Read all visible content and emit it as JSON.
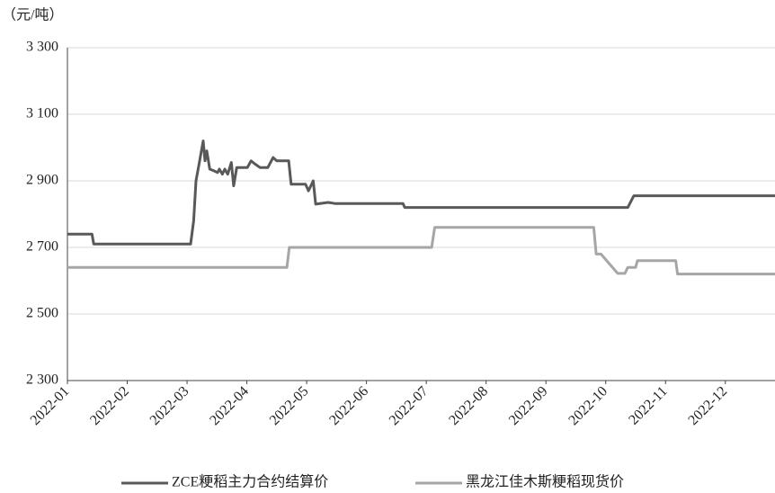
{
  "chart_data": {
    "type": "line",
    "unit_label": "（元/吨）",
    "xlim": [
      0,
      11.83
    ],
    "xticks": [
      {
        "value": 0,
        "label": "2022-01"
      },
      {
        "value": 1,
        "label": "2022-02"
      },
      {
        "value": 2,
        "label": "2022-03"
      },
      {
        "value": 3,
        "label": "2022-04"
      },
      {
        "value": 4,
        "label": "2022-05"
      },
      {
        "value": 5,
        "label": "2022-06"
      },
      {
        "value": 6,
        "label": "2022-07"
      },
      {
        "value": 7,
        "label": "2022-08"
      },
      {
        "value": 8,
        "label": "2022-09"
      },
      {
        "value": 9,
        "label": "2022-10"
      },
      {
        "value": 10,
        "label": "2022-11"
      },
      {
        "value": 11,
        "label": "2022-12"
      }
    ],
    "ylim": [
      2300,
      3300
    ],
    "yticks": [
      {
        "value": 2300,
        "label": "2 300"
      },
      {
        "value": 2500,
        "label": "2 500"
      },
      {
        "value": 2700,
        "label": "2 700"
      },
      {
        "value": 2900,
        "label": "2 900"
      },
      {
        "value": 3100,
        "label": "3 100"
      },
      {
        "value": 3300,
        "label": "3 300"
      }
    ],
    "grid": true,
    "legend": "bottom",
    "series": [
      {
        "name": "ZCE粳稻主力合约结算价",
        "color": "#595959",
        "x": [
          0,
          0.41,
          0.44,
          2.06,
          2.11,
          2.15,
          2.2,
          2.27,
          2.3,
          2.33,
          2.38,
          2.45,
          2.51,
          2.54,
          2.59,
          2.63,
          2.68,
          2.74,
          2.78,
          2.83,
          3.01,
          3.07,
          3.14,
          3.22,
          3.35,
          3.44,
          3.5,
          3.7,
          3.74,
          3.98,
          4.03,
          4.11,
          4.15,
          4.36,
          4.47,
          5.61,
          5.64,
          9.37,
          9.47,
          11.83
        ],
        "values": [
          2740,
          2740,
          2710,
          2710,
          2780,
          2900,
          2950,
          3020,
          2960,
          2990,
          2935,
          2930,
          2925,
          2935,
          2920,
          2935,
          2920,
          2955,
          2885,
          2940,
          2940,
          2960,
          2950,
          2940,
          2940,
          2970,
          2960,
          2960,
          2890,
          2890,
          2870,
          2900,
          2830,
          2835,
          2832,
          2832,
          2820,
          2820,
          2855,
          2855
        ]
      },
      {
        "name": "黑龙江佳木斯粳稻现货价",
        "color": "#a6a6a6",
        "x": [
          0,
          3.67,
          3.71,
          6.09,
          6.14,
          8.8,
          8.84,
          8.92,
          9.2,
          9.32,
          9.37,
          9.5,
          9.53,
          10.17,
          10.2,
          11.83
        ],
        "values": [
          2640,
          2640,
          2700,
          2700,
          2760,
          2760,
          2680,
          2680,
          2622,
          2622,
          2640,
          2640,
          2660,
          2660,
          2620,
          2620
        ]
      }
    ]
  }
}
